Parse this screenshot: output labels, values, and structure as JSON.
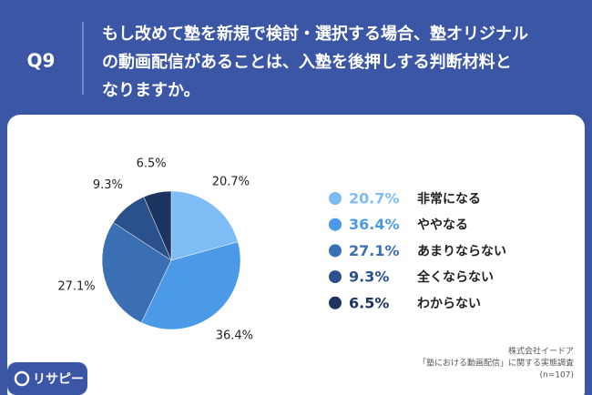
{
  "chart_data": {
    "type": "pie",
    "question_no": "Q9",
    "title_lines": [
      "もし改めて塾を新規で検討・選択する場合、塾オリジナル",
      "の動画配信があることは、入塾を後押しする判断材料と",
      "なりますか。"
    ],
    "categories": [
      "非常になる",
      "ややなる",
      "あまりならない",
      "全くならない",
      "わからない"
    ],
    "values": [
      20.7,
      36.4,
      27.1,
      9.3,
      6.5
    ],
    "value_labels": [
      "20.7%",
      "36.4%",
      "27.1%",
      "9.3%",
      "6.5%"
    ],
    "colors": [
      "#7dbcf5",
      "#4a9ae8",
      "#3a6fb3",
      "#2a5189",
      "#1c345f"
    ],
    "source_lines": [
      "株式会社イードア",
      "「塾における動画配信」に関する実態調査",
      "(n=107)"
    ],
    "logo": "リサピー"
  }
}
